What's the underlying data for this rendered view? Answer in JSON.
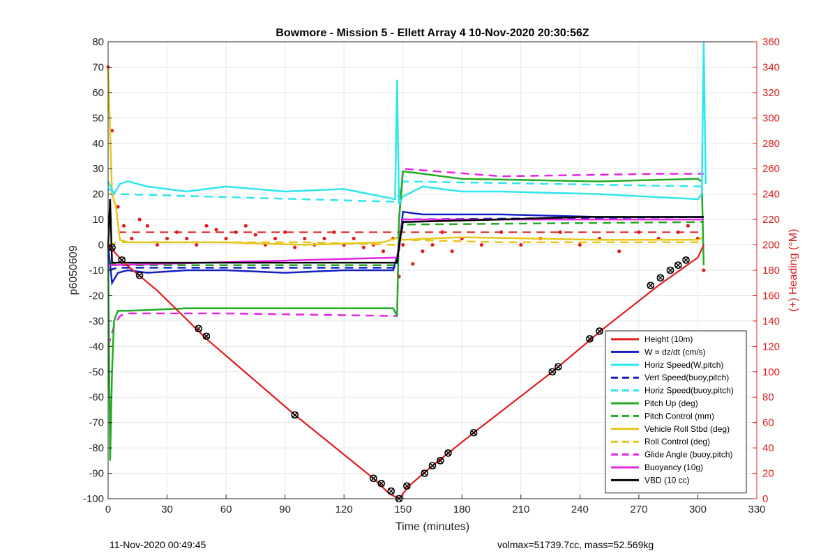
{
  "chart_data": {
    "type": "line",
    "title": "Bowmore - Mission 5 - Ellett Array 4 10-Nov-2020 20:30:56Z",
    "xlabel": "Time (minutes)",
    "ylabel": "p6050609",
    "y2label": "(+) Heading (°M)",
    "xlim": [
      0,
      330
    ],
    "ylim": [
      -100,
      80
    ],
    "y2lim": [
      0,
      360
    ],
    "xticks": [
      0,
      30,
      60,
      90,
      120,
      150,
      180,
      210,
      240,
      270,
      300,
      330
    ],
    "yticks": [
      -100,
      -90,
      -80,
      -70,
      -60,
      -50,
      -40,
      -30,
      -20,
      -10,
      0,
      10,
      20,
      30,
      40,
      50,
      60,
      70,
      80
    ],
    "y2ticks": [
      0,
      20,
      40,
      60,
      80,
      100,
      120,
      140,
      160,
      180,
      200,
      220,
      240,
      260,
      280,
      300,
      320,
      340,
      360
    ],
    "grid": true,
    "legend_position": "bottom-right",
    "series": [
      {
        "name": "Height (10m)",
        "color": "#e11b1b",
        "style": "solid",
        "x": [
          0,
          8,
          25,
          50,
          95,
          135,
          143,
          148,
          153,
          165,
          186,
          226,
          252,
          280,
          300,
          303
        ],
        "y": [
          0,
          -7,
          -18,
          -37,
          -67,
          -92,
          -98,
          -100,
          -95,
          -87,
          -74,
          -50,
          -33,
          -16,
          -5,
          0
        ]
      },
      {
        "name": "W = dz/dt (cm/s)",
        "color": "#1420c4",
        "style": "solid",
        "x": [
          0,
          2,
          5,
          10,
          20,
          40,
          60,
          90,
          120,
          145,
          148,
          150,
          160,
          200,
          250,
          303
        ],
        "y": [
          0,
          -15,
          -11,
          -10,
          -11,
          -10,
          -10,
          -11,
          -10,
          -10,
          -2,
          13,
          12,
          12,
          11,
          11
        ]
      },
      {
        "name": "Horiz Speed(W,pitch)",
        "color": "#2ee6ee",
        "style": "solid",
        "x": [
          0,
          3,
          6,
          10,
          20,
          40,
          60,
          90,
          120,
          146,
          147,
          148,
          150,
          160,
          180,
          200,
          250,
          300,
          302,
          303,
          304
        ],
        "y": [
          25,
          20,
          24,
          25,
          23,
          21,
          23,
          21,
          22,
          18,
          65,
          16,
          19,
          23,
          21,
          21,
          20,
          18,
          20,
          80,
          24
        ]
      },
      {
        "name": "Vert Speed(buoy,pitch)",
        "color": "#1420c4",
        "style": "dashed",
        "x": [
          0,
          5,
          147,
          148,
          150,
          303
        ],
        "y": [
          -10,
          -9,
          -9,
          0,
          10,
          11
        ]
      },
      {
        "name": "Horiz Speed(buoy,pitch)",
        "color": "#2ee6ee",
        "style": "dashed",
        "x": [
          0,
          5,
          145,
          148,
          150,
          303
        ],
        "y": [
          22,
          20,
          17,
          20,
          25,
          23
        ]
      },
      {
        "name": "Pitch Up (deg)",
        "color": "#22aa22",
        "style": "solid",
        "x": [
          0,
          1,
          2,
          3,
          5,
          10,
          40,
          90,
          145,
          147,
          148,
          150,
          180,
          250,
          300,
          302,
          303
        ],
        "y": [
          0,
          -85,
          -50,
          -30,
          -26,
          -26,
          -25,
          -25,
          -25,
          -28,
          10,
          29,
          26,
          25,
          26,
          25,
          -8
        ]
      },
      {
        "name": "Pitch Control (mm)",
        "color": "#22aa22",
        "style": "dashed",
        "x": [
          0,
          5,
          147,
          148,
          150,
          303
        ],
        "y": [
          -7,
          -8,
          -8,
          0,
          8,
          9
        ]
      },
      {
        "name": "Vehicle Roll Stbd (deg)",
        "color": "#e6c61b",
        "style": "solid",
        "x": [
          0,
          2,
          4,
          6,
          10,
          20,
          60,
          100,
          140,
          148,
          150,
          180,
          250,
          300,
          303
        ],
        "y": [
          70,
          20,
          15,
          2,
          1,
          1,
          1,
          0,
          1,
          3,
          2,
          3,
          2,
          2,
          3
        ]
      },
      {
        "name": "Roll Control (deg)",
        "color": "#e6c61b",
        "style": "dashed",
        "x": [
          0,
          5,
          50,
          100,
          147,
          148,
          150,
          200,
          303
        ],
        "y": [
          0,
          1,
          1,
          1,
          0,
          2,
          2,
          1,
          1
        ]
      },
      {
        "name": "Glide Angle (buoy,pitch)",
        "color": "#e625e6",
        "style": "dashed",
        "x": [
          0,
          3,
          6,
          10,
          60,
          145,
          147,
          148,
          150,
          200,
          280,
          303
        ],
        "y": [
          -40,
          -32,
          -28,
          -27,
          -27,
          -28,
          -28,
          10,
          30,
          27,
          28,
          28
        ]
      },
      {
        "name": "Buoyancy (10g)",
        "color": "#e625e6",
        "style": "solid",
        "x": [
          0,
          2,
          147,
          148,
          150,
          303
        ],
        "y": [
          -8,
          -8,
          -5,
          0,
          10,
          10
        ]
      },
      {
        "name": "VBD (10 cc)",
        "color": "#000000",
        "style": "solid",
        "x": [
          0,
          1,
          2,
          147,
          148,
          150,
          200,
          240,
          303
        ],
        "y": [
          -1,
          18,
          -7,
          -7,
          0,
          9,
          10,
          11,
          11
        ]
      }
    ],
    "heading_series": {
      "name": "(+) Heading (°M)",
      "color": "#e11b1b",
      "x": [
        0,
        2,
        5,
        8,
        12,
        16,
        20,
        25,
        30,
        35,
        40,
        45,
        50,
        55,
        60,
        65,
        70,
        75,
        80,
        85,
        90,
        95,
        100,
        105,
        110,
        115,
        120,
        125,
        130,
        135,
        140,
        145,
        148,
        150,
        155,
        160,
        165,
        170,
        175,
        180,
        190,
        200,
        210,
        220,
        230,
        240,
        250,
        260,
        270,
        280,
        290,
        295,
        300,
        303
      ],
      "y": [
        340,
        290,
        230,
        215,
        205,
        220,
        215,
        200,
        205,
        210,
        205,
        200,
        215,
        212,
        205,
        210,
        215,
        208,
        200,
        205,
        210,
        198,
        205,
        200,
        205,
        210,
        200,
        205,
        198,
        200,
        195,
        205,
        175,
        200,
        185,
        195,
        200,
        210,
        195,
        205,
        200,
        210,
        200,
        205,
        210,
        200,
        205,
        195,
        210,
        205,
        210,
        215,
        205,
        180
      ]
    },
    "heading_ref": {
      "x": [
        5,
        303
      ],
      "y": [
        210,
        210
      ]
    },
    "waypoints": [
      {
        "x": 2,
        "y": -1
      },
      {
        "x": 7,
        "y": -6
      },
      {
        "x": 16,
        "y": -12
      },
      {
        "x": 46,
        "y": -33
      },
      {
        "x": 50,
        "y": -36
      },
      {
        "x": 95,
        "y": -67
      },
      {
        "x": 135,
        "y": -92
      },
      {
        "x": 139,
        "y": -94
      },
      {
        "x": 144,
        "y": -97
      },
      {
        "x": 148,
        "y": -100
      },
      {
        "x": 152,
        "y": -95
      },
      {
        "x": 161,
        "y": -90
      },
      {
        "x": 165,
        "y": -87
      },
      {
        "x": 169,
        "y": -85
      },
      {
        "x": 173,
        "y": -82
      },
      {
        "x": 186,
        "y": -74
      },
      {
        "x": 226,
        "y": -50
      },
      {
        "x": 229,
        "y": -48
      },
      {
        "x": 245,
        "y": -37
      },
      {
        "x": 250,
        "y": -34
      },
      {
        "x": 276,
        "y": -16
      },
      {
        "x": 281,
        "y": -13
      },
      {
        "x": 286,
        "y": -10
      },
      {
        "x": 290,
        "y": -8
      },
      {
        "x": 294,
        "y": -6
      }
    ]
  },
  "footer": {
    "left": "11-Nov-2020 00:49:45",
    "right": "volmax=51739.7cc, mass=52.569kg"
  }
}
